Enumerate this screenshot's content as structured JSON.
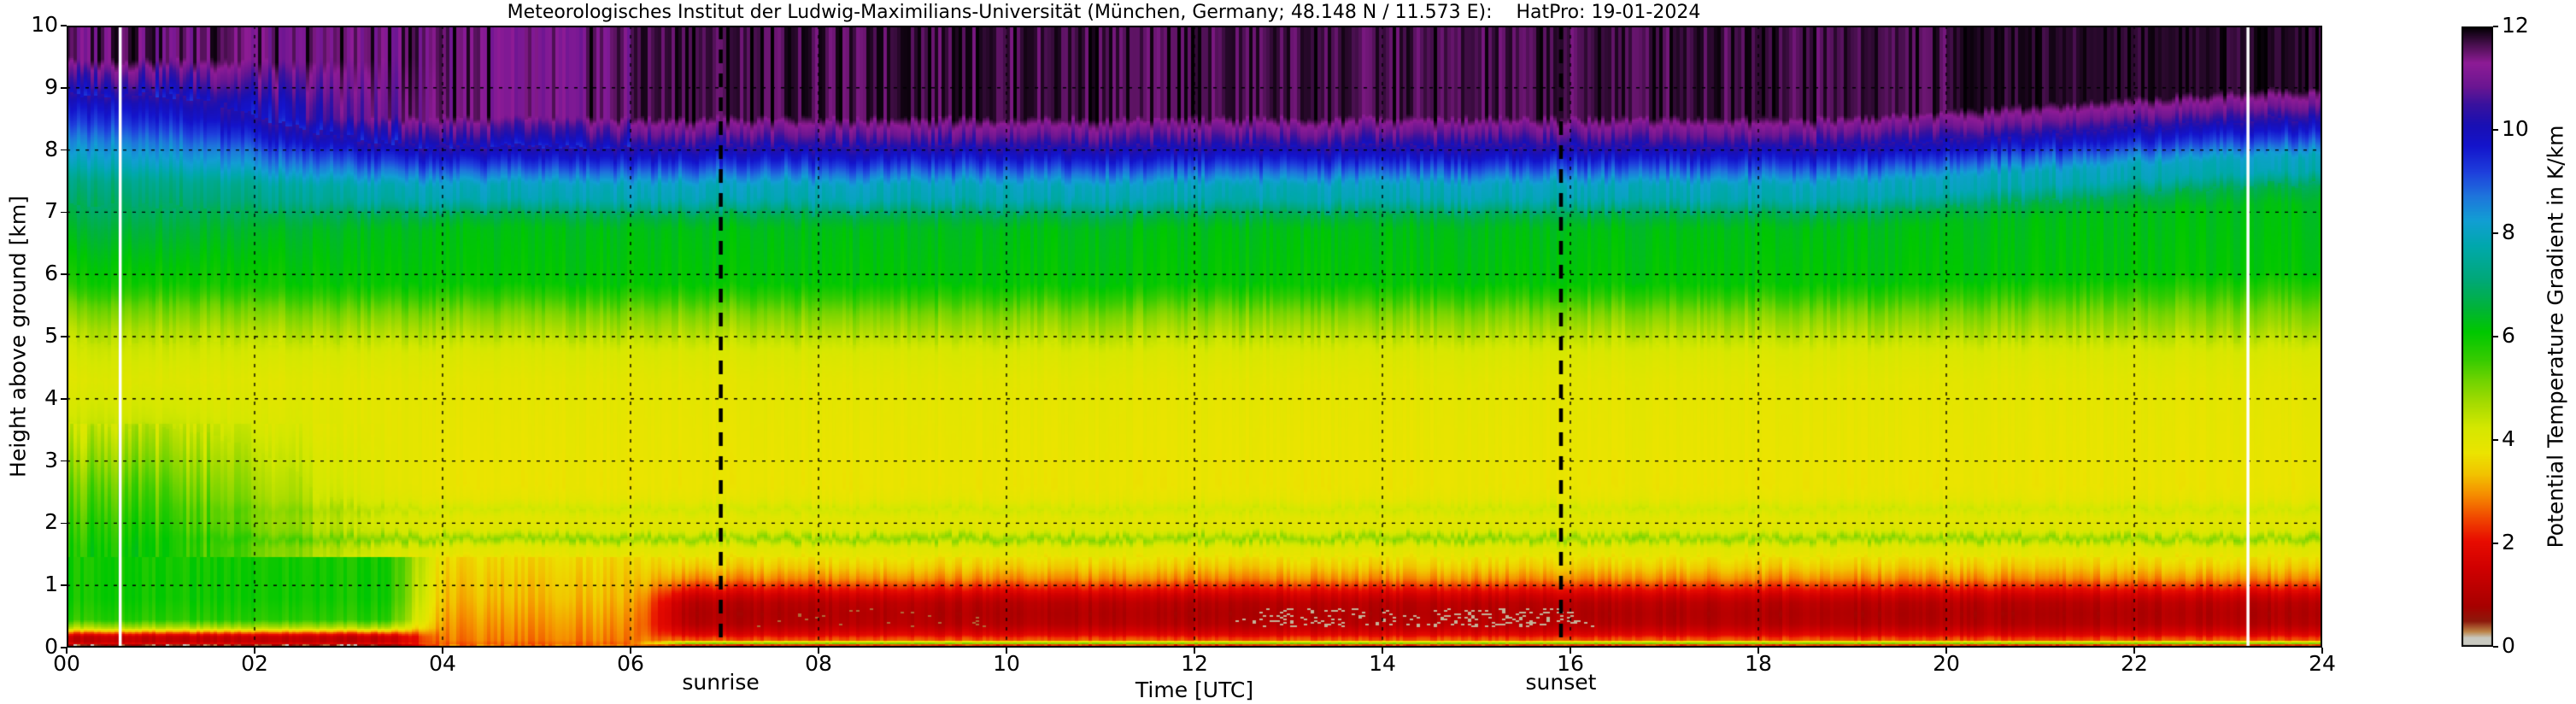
{
  "title": "Meteorologisches Institut der Ludwig-Maximilians-Universität (München, Germany; 48.148 N / 11.573 E):    HatPro: 19-01-2024",
  "axes": {
    "x": {
      "label": "Time [UTC]",
      "ticks": [
        "00",
        "02",
        "04",
        "06",
        "08",
        "10",
        "12",
        "14",
        "16",
        "18",
        "20",
        "22",
        "24"
      ],
      "range_hours": [
        0,
        24
      ],
      "grid": "dashed"
    },
    "y": {
      "label": "Height above ground [km]",
      "ticks": [
        "0",
        "1",
        "2",
        "3",
        "4",
        "5",
        "6",
        "7",
        "8",
        "9",
        "10"
      ],
      "range_km": [
        0,
        10
      ],
      "grid": "dashed"
    }
  },
  "colorbar": {
    "label": "Potential Temperature Gradient in K/km",
    "ticks": [
      "0",
      "2",
      "4",
      "6",
      "8",
      "10",
      "12"
    ],
    "range": [
      0,
      12
    ],
    "position": "right"
  },
  "annotations": {
    "sunrise_label": "sunrise",
    "sunset_label": "sunset"
  },
  "chart_data": {
    "type": "heatmap",
    "title": "Potential temperature gradient time-height section, HatPro microwave radiometer, 19-01-2024",
    "x_hours_utc": [
      0,
      24
    ],
    "y_height_km": [
      0,
      10
    ],
    "value_units": "K/km",
    "value_range": [
      0,
      12
    ],
    "grid_on": true,
    "events": {
      "sunrise_hour_utc": 6.96,
      "sunset_hour_utc": 15.9,
      "event_line_style": "thick black dashed vertical",
      "data_gap_lines_hour_utc": [
        0.57,
        23.21
      ],
      "data_gap_line_style": "white solid vertical"
    },
    "colormap_stops": [
      [
        0,
        "#cbcbc3"
      ],
      [
        0.18,
        "#c9c9c0"
      ],
      [
        0.3,
        "#bc8448"
      ],
      [
        0.5,
        "#8e1a0c"
      ],
      [
        0.8,
        "#a80000"
      ],
      [
        1.5,
        "#cf0000"
      ],
      [
        2.05,
        "#e80c00"
      ],
      [
        2.5,
        "#f14800"
      ],
      [
        2.95,
        "#f68e00"
      ],
      [
        3.35,
        "#f2c400"
      ],
      [
        3.75,
        "#ece400"
      ],
      [
        4.25,
        "#d5e800"
      ],
      [
        4.7,
        "#a8dc00"
      ],
      [
        5.15,
        "#72d400"
      ],
      [
        5.55,
        "#38cc00"
      ],
      [
        6.1,
        "#00c800"
      ],
      [
        6.55,
        "#00b438"
      ],
      [
        7.1,
        "#00a878"
      ],
      [
        7.75,
        "#00a8ac"
      ],
      [
        8.25,
        "#129fd4"
      ],
      [
        8.7,
        "#1e78dc"
      ],
      [
        9.2,
        "#1e3edc"
      ],
      [
        9.7,
        "#1414cc"
      ],
      [
        10.1,
        "#1a10b4"
      ],
      [
        10.5,
        "#3a129e"
      ],
      [
        10.85,
        "#6c1692"
      ],
      [
        11.3,
        "#8e1c96"
      ],
      [
        11.65,
        "#4a1050"
      ],
      [
        12,
        "#000000"
      ]
    ],
    "profile_day_h_km_vs_K_per_km": [
      [
        0.02,
        0.3
      ],
      [
        0.035,
        0.35
      ],
      [
        0.05,
        4.9
      ],
      [
        0.085,
        5.0
      ],
      [
        0.105,
        2.6
      ],
      [
        0.16,
        2.4
      ],
      [
        0.2,
        1.9
      ],
      [
        0.28,
        1.45
      ],
      [
        0.38,
        1.05
      ],
      [
        0.55,
        0.95
      ],
      [
        0.72,
        1.1
      ],
      [
        0.85,
        1.6
      ],
      [
        0.98,
        2.3
      ],
      [
        1.1,
        2.9
      ],
      [
        1.28,
        3.4
      ],
      [
        1.45,
        3.75
      ],
      [
        1.5,
        3.9
      ],
      [
        1.62,
        4.0
      ],
      [
        1.75,
        4.9
      ],
      [
        1.88,
        4.1
      ],
      [
        2.0,
        3.95
      ],
      [
        2.1,
        4.0
      ],
      [
        2.22,
        4.3
      ],
      [
        2.38,
        3.9
      ],
      [
        2.6,
        3.78
      ],
      [
        3.5,
        3.85
      ],
      [
        4.3,
        3.95
      ],
      [
        4.75,
        4.15
      ],
      [
        5.05,
        4.6
      ],
      [
        5.35,
        5.05
      ],
      [
        5.6,
        5.55
      ],
      [
        5.85,
        6.1
      ],
      [
        6.6,
        6.25
      ],
      [
        6.75,
        6.3
      ],
      [
        6.95,
        6.7
      ],
      [
        7.05,
        7.15
      ],
      [
        7.2,
        7.8
      ],
      [
        7.45,
        8.0
      ],
      [
        7.6,
        8.65
      ],
      [
        7.85,
        9.6
      ],
      [
        8.0,
        10.1
      ],
      [
        8.1,
        10.6
      ],
      [
        8.25,
        11.1
      ],
      [
        8.4,
        11.5
      ],
      [
        8.52,
        12
      ],
      [
        10,
        12
      ]
    ],
    "profile_night_h_km_vs_K_per_km": [
      [
        0.03,
        0.25
      ],
      [
        0.045,
        0.3
      ],
      [
        0.06,
        1.8
      ],
      [
        0.1,
        1.25
      ],
      [
        0.17,
        1.3
      ],
      [
        0.22,
        2.2
      ],
      [
        0.26,
        3.2
      ],
      [
        0.32,
        4.6
      ],
      [
        0.45,
        5.7
      ],
      [
        0.8,
        5.95
      ],
      [
        1.6,
        5.9
      ],
      [
        2.1,
        5.6
      ],
      [
        2.6,
        5.25
      ],
      [
        3.1,
        4.8
      ],
      [
        3.7,
        4.3
      ],
      [
        4.3,
        4.05
      ],
      [
        4.8,
        4.3
      ],
      [
        5.1,
        4.6
      ],
      [
        5.5,
        5.2
      ],
      [
        5.85,
        5.9
      ],
      [
        6.3,
        6.2
      ],
      [
        6.7,
        6.5
      ],
      [
        7.1,
        6.9
      ],
      [
        7.5,
        7.3
      ],
      [
        7.75,
        7.9
      ],
      [
        8.1,
        8.5
      ],
      [
        8.45,
        9.3
      ],
      [
        8.75,
        9.9
      ],
      [
        9.0,
        10.7
      ],
      [
        9.25,
        11.3
      ],
      [
        9.45,
        12
      ],
      [
        10,
        12
      ]
    ],
    "profile_transition_h_km_vs_K_per_km": [
      [
        0.02,
        0.8
      ],
      [
        0.035,
        2.6
      ],
      [
        0.12,
        2.85
      ],
      [
        0.35,
        3.0
      ],
      [
        0.8,
        3.3
      ],
      [
        1.45,
        3.6
      ]
    ],
    "time_morphing": {
      "night_to_day_blend_hours": [
        0.5,
        4.3
      ],
      "low_level_night_phase_ends_hour": 3.7,
      "low_level_orange_transition_hours": [
        3.7,
        6.4
      ],
      "surface_red_layer_fully_developed_hour": 6.7,
      "evening_band_uplift_km": 0.45,
      "evening_uplift_hours": [
        19,
        23.3
      ],
      "grey_speckles_in_red_layer_hours": [
        12.4,
        16.25
      ],
      "grey_speckles_height_km": [
        0.33,
        0.62
      ]
    },
    "features": [
      "black region (gradient >= 12 K/km) above ~8.5 km all day, lowering from ~9.4 km at 00 UTC",
      "purple/blue/cyan stratified bands between ~7 and ~8.5 km",
      "yellow (~3.5-4 K/km) mid-troposphere 2.5-5 km",
      "near-neutral green boundary layer up to ~3 km before ~04 UTC",
      "strong stable red layer (~1 K/km) 0.3-0.9 km from ~06:30 UTC onward",
      "thin grey near-zero gradient layer at the surface"
    ]
  },
  "layout_colors": {
    "background": "#ffffff",
    "grid": "#000000",
    "event_line": "#000000",
    "gap_line": "#ffffff",
    "text": "#000000"
  }
}
